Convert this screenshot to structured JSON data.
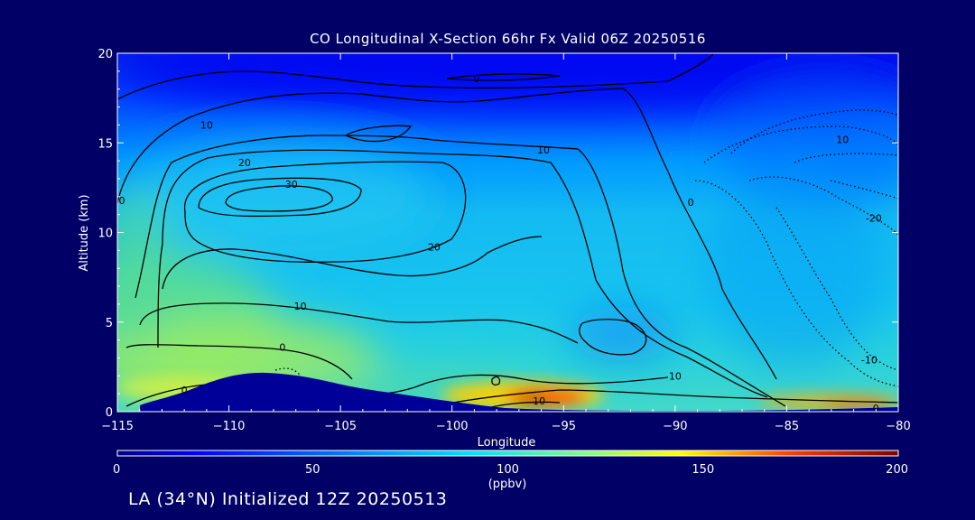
{
  "chart_data": {
    "type": "heatmap",
    "title": "CO Longitudinal X-Section 66hr  Fx Valid 06Z 20250516",
    "xlabel": "Longitude",
    "ylabel": "Altitude (km)",
    "xlim": [
      -115,
      -80
    ],
    "ylim": [
      0,
      20
    ],
    "x_ticks": [
      -115,
      -110,
      -105,
      -100,
      -95,
      -90,
      -85,
      -80
    ],
    "y_ticks": [
      0,
      5,
      10,
      15,
      20
    ],
    "colorbar": {
      "label": "(ppbv)",
      "range": [
        0,
        200
      ],
      "ticks": [
        0,
        50,
        100,
        150,
        200
      ],
      "placement": "bottom"
    },
    "contour_labels": [
      {
        "text": "0",
        "lon": -98.9,
        "alt": 18.6
      },
      {
        "text": "10",
        "lon": -111.0,
        "alt": 16.0
      },
      {
        "text": "10",
        "lon": -95.9,
        "alt": 14.6
      },
      {
        "text": "10",
        "lon": -82.5,
        "alt": 15.2
      },
      {
        "text": "20",
        "lon": -109.3,
        "alt": 13.9
      },
      {
        "text": "30",
        "lon": -107.2,
        "alt": 12.7
      },
      {
        "text": "0",
        "lon": -114.8,
        "alt": 11.8
      },
      {
        "text": "0",
        "lon": -89.3,
        "alt": 11.7
      },
      {
        "text": "-20",
        "lon": -81.1,
        "alt": 10.8
      },
      {
        "text": "20",
        "lon": -100.8,
        "alt": 9.2
      },
      {
        "text": "10",
        "lon": -106.8,
        "alt": 5.9
      },
      {
        "text": "0",
        "lon": -107.6,
        "alt": 3.6
      },
      {
        "text": "-10",
        "lon": -81.3,
        "alt": 2.9
      },
      {
        "text": "10",
        "lon": -90.0,
        "alt": 2.0
      },
      {
        "text": "0",
        "lon": -112.0,
        "alt": 1.2
      },
      {
        "text": "10",
        "lon": -96.1,
        "alt": 0.6
      },
      {
        "text": "0",
        "lon": -81.0,
        "alt": 0.2
      }
    ],
    "terrain": {
      "color": "#000099"
    }
  },
  "footer": "LA (34°N) Initialized 12Z 20250513"
}
